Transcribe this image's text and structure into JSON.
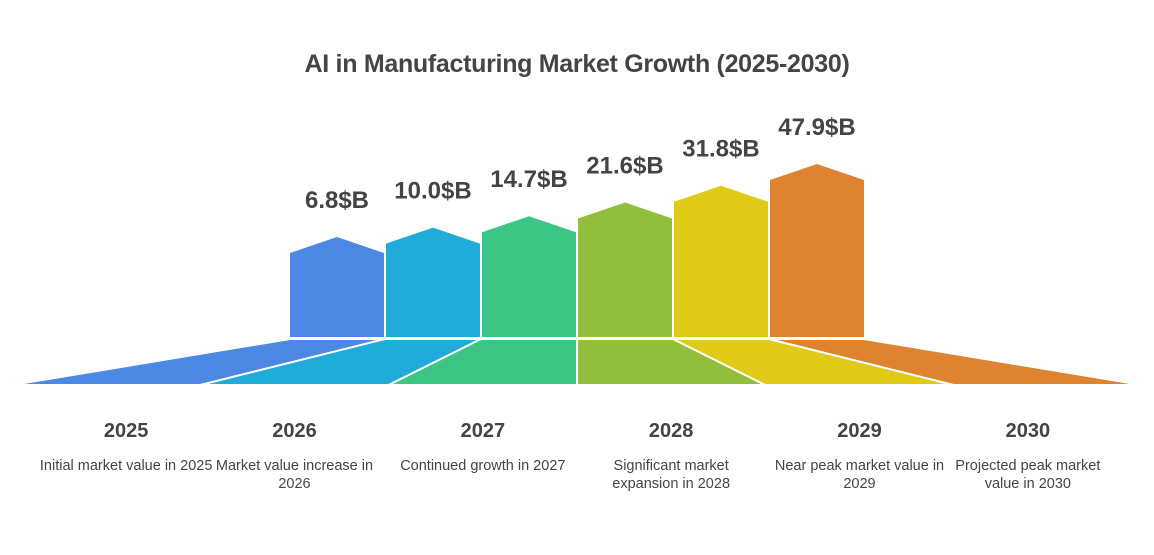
{
  "chart_data": {
    "type": "bar",
    "title": "AI in Manufacturing Market Growth (2025-2030)",
    "xlabel": "",
    "ylabel": "",
    "unit": "$B",
    "categories": [
      "2025",
      "2026",
      "2027",
      "2028",
      "2029",
      "2030"
    ],
    "values": [
      6.8,
      10.0,
      14.7,
      21.6,
      31.8,
      47.9
    ],
    "value_labels": [
      "6.8$B",
      "10.0$B",
      "14.7$B",
      "21.6$B",
      "31.8$B",
      "47.9$B"
    ],
    "descriptions": [
      "Initial market value in 2025",
      "Market value increase in 2026",
      "Continued growth in 2027",
      "Significant market expansion in 2028",
      "Near peak market value in 2029",
      "Projected peak market value in 2030"
    ],
    "colors": [
      "#4E88E5",
      "#20ACD9",
      "#3DC585",
      "#93BE3C",
      "#DFCB17",
      "#DE8431"
    ],
    "grid": false,
    "legend": "none"
  }
}
